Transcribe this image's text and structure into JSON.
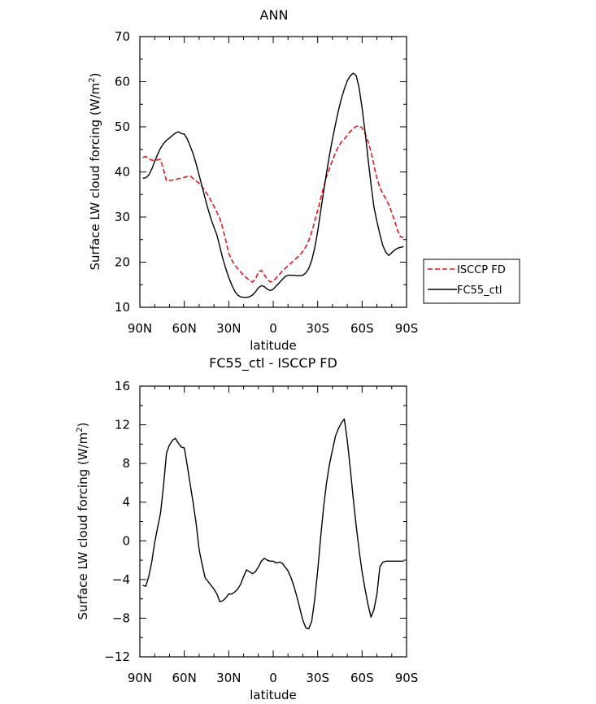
{
  "chart_data": [
    {
      "type": "line",
      "title": "ANN",
      "xlabel": "latitude",
      "ylabel_main": "Surface LW cloud forcing (W/m",
      "ylabel_sup": "2",
      "ylabel_end": ")",
      "xlim": [
        -90,
        90
      ],
      "ylim": [
        10,
        70
      ],
      "xticks": [
        -90,
        -60,
        -30,
        0,
        30,
        60,
        90
      ],
      "xtick_labels": [
        "90N",
        "60N",
        "30N",
        "0",
        "30S",
        "60S",
        "90S"
      ],
      "yticks": [
        10,
        20,
        30,
        40,
        50,
        60,
        70
      ],
      "ytick_labels": [
        "10",
        "20",
        "30",
        "40",
        "50",
        "60",
        "70"
      ],
      "legend_position": "right",
      "series": [
        {
          "name": "ISCCP FD",
          "color": "#e8141b",
          "style": "dashed",
          "x": [
            -88,
            -86,
            -84,
            -82,
            -80,
            -78,
            -76,
            -74,
            -72,
            -70,
            -68,
            -66,
            -64,
            -62,
            -60,
            -58,
            -56,
            -54,
            -52,
            -50,
            -48,
            -46,
            -44,
            -42,
            -40,
            -38,
            -36,
            -34,
            -32,
            -30,
            -28,
            -26,
            -24,
            -22,
            -20,
            -18,
            -16,
            -14,
            -12,
            -10,
            -8,
            -6,
            -4,
            -2,
            0,
            2,
            4,
            6,
            8,
            10,
            12,
            14,
            16,
            18,
            20,
            22,
            24,
            26,
            28,
            30,
            32,
            34,
            36,
            38,
            40,
            42,
            44,
            46,
            48,
            50,
            52,
            54,
            56,
            58,
            60,
            62,
            64,
            66,
            68,
            70,
            72,
            74,
            76,
            78,
            80,
            82,
            84,
            86,
            88
          ],
          "y": [
            43.2,
            43.4,
            43.0,
            42.6,
            42.5,
            42.7,
            42.8,
            40.5,
            38.0,
            38.1,
            38.2,
            38.3,
            38.5,
            38.6,
            38.8,
            39.0,
            39.1,
            38.5,
            38.0,
            37.5,
            36.7,
            35.8,
            34.8,
            33.6,
            32.4,
            31.0,
            29.7,
            27.5,
            24.8,
            22.0,
            20.5,
            19.4,
            18.6,
            17.8,
            17.1,
            16.5,
            16.0,
            15.6,
            16.2,
            17.8,
            18.2,
            17.2,
            16.2,
            15.6,
            15.8,
            16.5,
            17.2,
            18.0,
            18.6,
            19.2,
            19.8,
            20.4,
            21.0,
            21.6,
            22.4,
            23.4,
            24.8,
            26.7,
            29.0,
            31.5,
            34.0,
            36.6,
            39.0,
            40.8,
            42.6,
            44.2,
            45.6,
            46.6,
            47.3,
            48.1,
            49.0,
            49.6,
            50.1,
            50.2,
            49.8,
            48.5,
            46.7,
            44.5,
            41.5,
            38.6,
            36.5,
            35.2,
            34.0,
            32.8,
            31.0,
            29.1,
            27.0,
            25.6,
            25.5
          ]
        },
        {
          "name": "FC55_ctl",
          "color": "#000000",
          "style": "solid",
          "x": [
            -88,
            -86,
            -84,
            -82,
            -80,
            -78,
            -76,
            -74,
            -72,
            -70,
            -68,
            -66,
            -64,
            -62,
            -60,
            -58,
            -56,
            -54,
            -52,
            -50,
            -48,
            -46,
            -44,
            -42,
            -40,
            -38,
            -36,
            -34,
            -32,
            -30,
            -28,
            -26,
            -24,
            -22,
            -20,
            -18,
            -16,
            -14,
            -12,
            -10,
            -8,
            -6,
            -4,
            -2,
            0,
            2,
            4,
            6,
            8,
            10,
            12,
            14,
            16,
            18,
            20,
            22,
            24,
            26,
            28,
            30,
            32,
            34,
            36,
            38,
            40,
            42,
            44,
            46,
            48,
            50,
            52,
            54,
            56,
            58,
            60,
            62,
            64,
            66,
            68,
            70,
            72,
            74,
            76,
            78,
            80,
            82,
            84,
            86,
            88
          ],
          "y": [
            38.6,
            38.7,
            39.3,
            40.6,
            42.3,
            43.9,
            45.3,
            46.3,
            47.0,
            47.5,
            48.1,
            48.6,
            48.9,
            48.5,
            48.4,
            47.3,
            45.7,
            44.0,
            41.8,
            39.3,
            36.8,
            34.2,
            31.8,
            29.6,
            27.8,
            26.0,
            23.4,
            20.8,
            18.6,
            16.6,
            15.0,
            13.6,
            12.7,
            12.3,
            12.2,
            12.2,
            12.3,
            12.7,
            13.4,
            14.3,
            14.8,
            14.6,
            14.0,
            13.7,
            14.0,
            14.7,
            15.4,
            16.1,
            16.8,
            17.1,
            17.1,
            17.1,
            17.0,
            17.0,
            17.1,
            17.6,
            18.6,
            20.4,
            23.1,
            26.8,
            31.2,
            35.6,
            39.8,
            43.7,
            47.3,
            50.5,
            53.6,
            56.2,
            58.4,
            60.2,
            61.3,
            61.9,
            61.4,
            58.6,
            54.2,
            48.9,
            43.0,
            37.3,
            32.2,
            29.0,
            26.2,
            23.7,
            22.2,
            21.5,
            22.1,
            22.7,
            23.1,
            23.3,
            23.4
          ]
        }
      ]
    },
    {
      "type": "line",
      "title": "FC55_ctl - ISCCP FD",
      "xlabel": "latitude",
      "ylabel_main": "Surface LW cloud forcing (W/m",
      "ylabel_sup": "2",
      "ylabel_end": ")",
      "xlim": [
        -90,
        90
      ],
      "ylim": [
        -12,
        16
      ],
      "xticks": [
        -90,
        -60,
        -30,
        0,
        30,
        60,
        90
      ],
      "xtick_labels": [
        "90N",
        "60N",
        "30N",
        "0",
        "30S",
        "60S",
        "90S"
      ],
      "yticks": [
        -12,
        -8,
        -4,
        0,
        4,
        8,
        12,
        16
      ],
      "ytick_labels": [
        "−12",
        "−8",
        "−4",
        "0",
        "4",
        "8",
        "12",
        "16"
      ],
      "series": [
        {
          "color": "#000000",
          "style": "solid",
          "x": [
            -88,
            -86,
            -84,
            -82,
            -80,
            -78,
            -76,
            -74,
            -72,
            -70,
            -68,
            -66,
            -64,
            -62,
            -60,
            -58,
            -56,
            -54,
            -52,
            -50,
            -48,
            -46,
            -44,
            -42,
            -40,
            -38,
            -36,
            -34,
            -32,
            -30,
            -28,
            -26,
            -24,
            -22,
            -20,
            -18,
            -16,
            -14,
            -12,
            -10,
            -8,
            -6,
            -4,
            -2,
            0,
            2,
            4,
            6,
            8,
            10,
            12,
            14,
            16,
            18,
            20,
            22,
            24,
            26,
            28,
            30,
            32,
            34,
            36,
            38,
            40,
            42,
            44,
            46,
            48,
            50,
            52,
            54,
            56,
            58,
            60,
            62,
            64,
            66,
            68,
            70,
            72,
            74,
            76,
            78,
            80,
            82,
            84,
            86,
            88
          ],
          "y": [
            -4.6,
            -4.7,
            -3.7,
            -2.2,
            -0.2,
            1.4,
            2.9,
            5.8,
            9.1,
            9.9,
            10.4,
            10.6,
            10.1,
            9.7,
            9.6,
            7.8,
            5.8,
            3.9,
            1.8,
            -0.9,
            -2.4,
            -3.8,
            -4.2,
            -4.6,
            -5.0,
            -5.5,
            -6.3,
            -6.2,
            -5.9,
            -5.5,
            -5.5,
            -5.3,
            -5.0,
            -4.5,
            -3.7,
            -3.0,
            -3.2,
            -3.4,
            -3.2,
            -2.7,
            -2.1,
            -1.8,
            -2.0,
            -2.1,
            -2.1,
            -2.3,
            -2.2,
            -2.3,
            -2.7,
            -3.1,
            -3.8,
            -4.7,
            -5.8,
            -7.0,
            -8.2,
            -9.0,
            -9.1,
            -8.3,
            -6.1,
            -3.1,
            0.3,
            3.5,
            6.0,
            7.9,
            9.4,
            10.8,
            11.6,
            12.2,
            12.6,
            10.4,
            7.5,
            4.4,
            1.6,
            -1.0,
            -3.2,
            -5.0,
            -6.6,
            -7.9,
            -7.1,
            -5.5,
            -2.7,
            -2.2,
            -2.1,
            -2.1,
            -2.1,
            -2.1,
            -2.1,
            -2.1,
            -2.1
          ]
        }
      ]
    }
  ]
}
